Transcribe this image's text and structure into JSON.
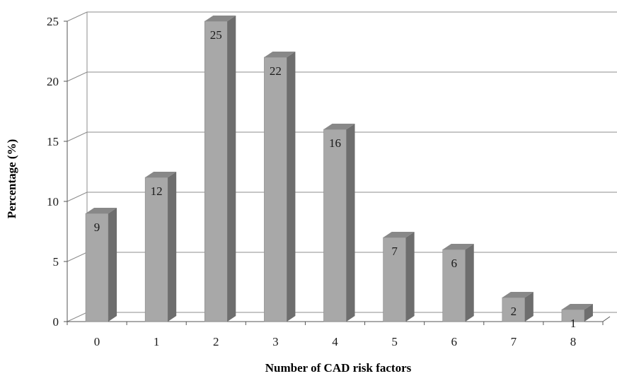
{
  "chart_data": {
    "type": "bar",
    "categories": [
      "0",
      "1",
      "2",
      "3",
      "4",
      "5",
      "6",
      "7",
      "8"
    ],
    "values": [
      9,
      12,
      25,
      22,
      16,
      7,
      6,
      2,
      1
    ],
    "data_labels": [
      "9",
      "12",
      "25",
      "22",
      "16",
      "7",
      "6",
      "2",
      "1"
    ],
    "xlabel": "Number of CAD risk factors",
    "ylabel": "Percentage (%)",
    "ylim": [
      0,
      25
    ],
    "yticks": [
      "0",
      "5",
      "10",
      "15",
      "20",
      "25"
    ],
    "grid": true,
    "style": "3d-column",
    "colors": {
      "bar_front": "#a8a8a8",
      "bar_side": "#6e6e6e",
      "bar_top": "#888888",
      "grid": "#8c8c8c"
    }
  }
}
